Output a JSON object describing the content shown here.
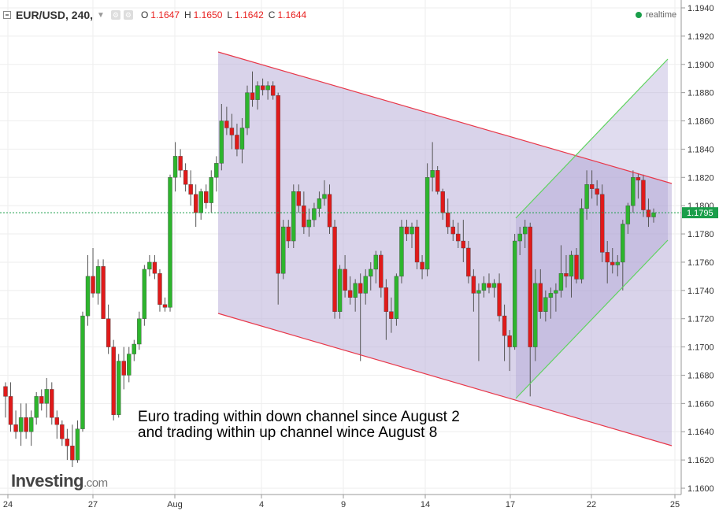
{
  "header": {
    "symbol": "EUR/USD, 240,",
    "open_label": "O",
    "open_value": "1.1647",
    "high_label": "H",
    "high_value": "1.1650",
    "low_label": "L",
    "low_value": "1.1642",
    "close_label": "C",
    "close_value": "1.1644",
    "realtime_label": "realtime"
  },
  "annotation": {
    "line1": "Euro trading within down channel since August 2",
    "line2": "and trading within up channel wince August 8"
  },
  "logo": {
    "main": "Investing",
    "suffix": ".com"
  },
  "colors": {
    "up": "#2db52d",
    "down": "#e01a1a",
    "channel_down": "#e8384a",
    "channel_up": "#5fd35f",
    "fill": "#b7add8",
    "current": "#1a9e4a"
  },
  "chart_data": {
    "type": "candlestick",
    "ylim": [
      1.1595,
      1.1945
    ],
    "y_ticks": [
      "1.1940",
      "1.1920",
      "1.1900",
      "1.1880",
      "1.1860",
      "1.1840",
      "1.1820",
      "1.1800",
      "1.1780",
      "1.1760",
      "1.1740",
      "1.1720",
      "1.1700",
      "1.1680",
      "1.1660",
      "1.1640",
      "1.1620",
      "1.1600"
    ],
    "x_ticks": [
      "24",
      "27",
      "Aug",
      "4",
      "9",
      "14",
      "17",
      "22",
      "25"
    ],
    "current_price": 1.1795,
    "current_price_label": "1.1795",
    "candles": [
      [
        1.1672,
        1.1675,
        1.165,
        1.1665
      ],
      [
        1.1665,
        1.1675,
        1.164,
        1.1645
      ],
      [
        1.1645,
        1.1655,
        1.1635,
        1.164
      ],
      [
        1.164,
        1.166,
        1.163,
        1.165
      ],
      [
        1.165,
        1.166,
        1.1635,
        1.164
      ],
      [
        1.164,
        1.1655,
        1.163,
        1.165
      ],
      [
        1.165,
        1.1668,
        1.1645,
        1.1665
      ],
      [
        1.1665,
        1.167,
        1.1655,
        1.166
      ],
      [
        1.166,
        1.1678,
        1.165,
        1.167
      ],
      [
        1.167,
        1.1675,
        1.1645,
        1.165
      ],
      [
        1.165,
        1.1655,
        1.1635,
        1.1645
      ],
      [
        1.1645,
        1.1648,
        1.163,
        1.1635
      ],
      [
        1.1635,
        1.1642,
        1.162,
        1.163
      ],
      [
        1.163,
        1.1645,
        1.1615,
        1.162
      ],
      [
        1.162,
        1.1648,
        1.1618,
        1.1642
      ],
      [
        1.1642,
        1.1725,
        1.164,
        1.1722
      ],
      [
        1.1722,
        1.1765,
        1.1715,
        1.175
      ],
      [
        1.175,
        1.177,
        1.1735,
        1.1738
      ],
      [
        1.1738,
        1.1762,
        1.173,
        1.1757
      ],
      [
        1.1757,
        1.1762,
        1.172,
        1.172
      ],
      [
        1.172,
        1.173,
        1.1695,
        1.17
      ],
      [
        1.17,
        1.1705,
        1.1648,
        1.1652
      ],
      [
        1.1652,
        1.1695,
        1.165,
        1.169
      ],
      [
        1.169,
        1.17,
        1.167,
        1.168
      ],
      [
        1.168,
        1.17,
        1.1675,
        1.1695
      ],
      [
        1.1695,
        1.1705,
        1.169,
        1.1702
      ],
      [
        1.1702,
        1.1725,
        1.1698,
        1.172
      ],
      [
        1.172,
        1.1758,
        1.1715,
        1.1755
      ],
      [
        1.1755,
        1.1765,
        1.175,
        1.176
      ],
      [
        1.176,
        1.1765,
        1.1748,
        1.1752
      ],
      [
        1.1752,
        1.1755,
        1.1725,
        1.173
      ],
      [
        1.173,
        1.1735,
        1.1725,
        1.1728
      ],
      [
        1.1728,
        1.1822,
        1.1725,
        1.182
      ],
      [
        1.182,
        1.1845,
        1.181,
        1.1835
      ],
      [
        1.1835,
        1.184,
        1.182,
        1.1825
      ],
      [
        1.1825,
        1.183,
        1.181,
        1.1815
      ],
      [
        1.1815,
        1.1825,
        1.18,
        1.1808
      ],
      [
        1.1808,
        1.1815,
        1.1785,
        1.1795
      ],
      [
        1.1795,
        1.1812,
        1.179,
        1.181
      ],
      [
        1.181,
        1.1815,
        1.1798,
        1.1802
      ],
      [
        1.1802,
        1.1825,
        1.1795,
        1.182
      ],
      [
        1.182,
        1.1835,
        1.181,
        1.183
      ],
      [
        1.183,
        1.1872,
        1.1825,
        1.186
      ],
      [
        1.186,
        1.187,
        1.185,
        1.1855
      ],
      [
        1.1855,
        1.1865,
        1.184,
        1.185
      ],
      [
        1.185,
        1.1858,
        1.1835,
        1.184
      ],
      [
        1.184,
        1.1862,
        1.183,
        1.1855
      ],
      [
        1.1855,
        1.1885,
        1.185,
        1.188
      ],
      [
        1.188,
        1.1895,
        1.187,
        1.1875
      ],
      [
        1.1875,
        1.1888,
        1.1868,
        1.1885
      ],
      [
        1.1885,
        1.189,
        1.1878,
        1.1882
      ],
      [
        1.1882,
        1.1888,
        1.1875,
        1.1885
      ],
      [
        1.1885,
        1.1888,
        1.1875,
        1.1878
      ],
      [
        1.1878,
        1.188,
        1.173,
        1.1752
      ],
      [
        1.1752,
        1.179,
        1.1748,
        1.1785
      ],
      [
        1.1785,
        1.179,
        1.177,
        1.1775
      ],
      [
        1.1775,
        1.1815,
        1.177,
        1.181
      ],
      [
        1.181,
        1.1815,
        1.1795,
        1.18
      ],
      [
        1.18,
        1.181,
        1.178,
        1.1785
      ],
      [
        1.1785,
        1.1798,
        1.1778,
        1.179
      ],
      [
        1.179,
        1.1802,
        1.1785,
        1.1798
      ],
      [
        1.1798,
        1.181,
        1.1792,
        1.1805
      ],
      [
        1.1805,
        1.1818,
        1.18,
        1.1808
      ],
      [
        1.1808,
        1.1815,
        1.178,
        1.1785
      ],
      [
        1.1785,
        1.179,
        1.172,
        1.1725
      ],
      [
        1.1725,
        1.1758,
        1.172,
        1.1755
      ],
      [
        1.1755,
        1.1765,
        1.1735,
        1.174
      ],
      [
        1.174,
        1.175,
        1.173,
        1.1735
      ],
      [
        1.1735,
        1.1748,
        1.1725,
        1.1745
      ],
      [
        1.1745,
        1.1752,
        1.169,
        1.1738
      ],
      [
        1.1738,
        1.1755,
        1.173,
        1.175
      ],
      [
        1.175,
        1.176,
        1.174,
        1.1755
      ],
      [
        1.1755,
        1.1768,
        1.1745,
        1.1765
      ],
      [
        1.1765,
        1.1768,
        1.1735,
        1.1742
      ],
      [
        1.1742,
        1.1748,
        1.1705,
        1.1725
      ],
      [
        1.1725,
        1.1735,
        1.171,
        1.172
      ],
      [
        1.172,
        1.1752,
        1.1715,
        1.175
      ],
      [
        1.175,
        1.179,
        1.1745,
        1.1785
      ],
      [
        1.1785,
        1.179,
        1.1775,
        1.178
      ],
      [
        1.178,
        1.1788,
        1.177,
        1.1785
      ],
      [
        1.1785,
        1.179,
        1.1755,
        1.176
      ],
      [
        1.176,
        1.1765,
        1.1748,
        1.1755
      ],
      [
        1.1755,
        1.183,
        1.175,
        1.182
      ],
      [
        1.182,
        1.1845,
        1.181,
        1.1825
      ],
      [
        1.1825,
        1.1828,
        1.1808,
        1.181
      ],
      [
        1.181,
        1.1812,
        1.179,
        1.1795
      ],
      [
        1.1795,
        1.1805,
        1.178,
        1.1785
      ],
      [
        1.1785,
        1.179,
        1.1775,
        1.178
      ],
      [
        1.178,
        1.1788,
        1.177,
        1.1775
      ],
      [
        1.1775,
        1.179,
        1.176,
        1.177
      ],
      [
        1.177,
        1.1775,
        1.1745,
        1.175
      ],
      [
        1.175,
        1.1755,
        1.1725,
        1.1738
      ],
      [
        1.1738,
        1.1745,
        1.169,
        1.174
      ],
      [
        1.174,
        1.175,
        1.1735,
        1.1745
      ],
      [
        1.1745,
        1.1752,
        1.1738,
        1.1742
      ],
      [
        1.1742,
        1.1748,
        1.1735,
        1.1745
      ],
      [
        1.1745,
        1.1752,
        1.1718,
        1.1722
      ],
      [
        1.1722,
        1.173,
        1.169,
        1.1708
      ],
      [
        1.1708,
        1.1712,
        1.1683,
        1.17
      ],
      [
        1.17,
        1.178,
        1.1698,
        1.1775
      ],
      [
        1.1775,
        1.1785,
        1.1765,
        1.178
      ],
      [
        1.178,
        1.179,
        1.177,
        1.1785
      ],
      [
        1.1785,
        1.1788,
        1.1665,
        1.17
      ],
      [
        1.17,
        1.1755,
        1.169,
        1.1745
      ],
      [
        1.1745,
        1.1755,
        1.172,
        1.1725
      ],
      [
        1.1725,
        1.174,
        1.1718,
        1.1735
      ],
      [
        1.1735,
        1.1742,
        1.172,
        1.1738
      ],
      [
        1.1738,
        1.1745,
        1.1725,
        1.174
      ],
      [
        1.174,
        1.1772,
        1.1735,
        1.1752
      ],
      [
        1.1752,
        1.1765,
        1.1742,
        1.175
      ],
      [
        1.175,
        1.1768,
        1.1735,
        1.1765
      ],
      [
        1.1765,
        1.177,
        1.1745,
        1.1748
      ],
      [
        1.1748,
        1.1805,
        1.1745,
        1.1798
      ],
      [
        1.1798,
        1.1825,
        1.179,
        1.1815
      ],
      [
        1.1815,
        1.1825,
        1.1805,
        1.1812
      ],
      [
        1.1812,
        1.1818,
        1.18,
        1.1808
      ],
      [
        1.1808,
        1.1815,
        1.176,
        1.1767
      ],
      [
        1.1767,
        1.1775,
        1.1745,
        1.176
      ],
      [
        1.176,
        1.177,
        1.1752,
        1.1758
      ],
      [
        1.1758,
        1.1765,
        1.175,
        1.176
      ],
      [
        1.176,
        1.179,
        1.174,
        1.1787
      ],
      [
        1.1787,
        1.1802,
        1.178,
        1.18
      ],
      [
        1.18,
        1.1825,
        1.1795,
        1.182
      ],
      [
        1.182,
        1.1823,
        1.1805,
        1.1818
      ],
      [
        1.1818,
        1.1822,
        1.1792,
        1.1797
      ],
      [
        1.1797,
        1.1805,
        1.1785,
        1.1792
      ],
      [
        1.1792,
        1.1798,
        1.1788,
        1.1795
      ]
    ]
  }
}
